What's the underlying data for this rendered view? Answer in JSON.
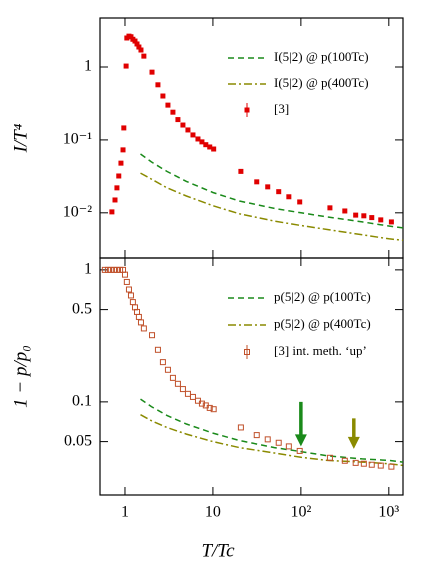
{
  "chart_data": [
    {
      "type": "line",
      "ylabel": "I/T⁴",
      "xscale": "log",
      "yscale": "log",
      "xlim": [
        0.52,
        1450
      ],
      "ylim": [
        0.0024,
        4.7
      ],
      "yticks": [
        {
          "value": 0.01,
          "label": "10⁻²"
        },
        {
          "value": 0.1,
          "label": "10⁻¹"
        },
        1
      ],
      "series": [
        {
          "name": "I(5|2) @ p(100Tc)",
          "color": "#1a8a1a",
          "style": "dashed",
          "x": [
            1.5,
            2,
            3,
            5,
            10,
            20,
            50,
            100,
            200,
            500,
            1000,
            1450
          ],
          "values": [
            0.064,
            0.05,
            0.037,
            0.027,
            0.019,
            0.0145,
            0.0115,
            0.01,
            0.0088,
            0.0075,
            0.0066,
            0.0062
          ]
        },
        {
          "name": "I(5|2) @ p(400Tc)",
          "color": "#8a8a00",
          "style": "dashdot",
          "x": [
            1.5,
            2,
            3,
            5,
            10,
            20,
            50,
            100,
            200,
            500,
            1000,
            1450
          ],
          "values": [
            0.035,
            0.029,
            0.022,
            0.017,
            0.0125,
            0.0097,
            0.0077,
            0.0067,
            0.0059,
            0.005,
            0.0044,
            0.0042
          ]
        },
        {
          "name": "[3]",
          "color": "#e00000",
          "style": "points",
          "x": [
            0.71,
            0.77,
            0.81,
            0.85,
            0.9,
            0.95,
            0.97,
            1.03,
            1.05,
            1.11,
            1.17,
            1.23,
            1.3,
            1.37,
            1.44,
            1.52,
            1.64,
            2.03,
            2.37,
            2.7,
            3.08,
            3.51,
            4.0,
            4.56,
            5.2,
            5.93,
            6.76,
            7.5,
            8.3,
            9.2,
            10.2,
            20.8,
            31.5,
            42,
            56,
            73,
            97,
            214,
            316,
            420,
            520,
            640,
            810,
            1070
          ],
          "values": [
            0.0103,
            0.015,
            0.022,
            0.032,
            0.048,
            0.073,
            0.146,
            1.03,
            2.5,
            2.65,
            2.6,
            2.4,
            2.27,
            2.07,
            1.88,
            1.71,
            1.41,
            0.85,
            0.57,
            0.4,
            0.3,
            0.24,
            0.19,
            0.16,
            0.137,
            0.117,
            0.103,
            0.094,
            0.086,
            0.08,
            0.075,
            0.037,
            0.0266,
            0.0227,
            0.0195,
            0.0166,
            0.0141,
            0.0117,
            0.0106,
            0.0093,
            0.0091,
            0.0086,
            0.008,
            0.0075
          ]
        }
      ]
    },
    {
      "type": "line",
      "ylabel": "1 − p/p₀",
      "xlabel": "T/Tc",
      "xscale": "log",
      "yscale": "log",
      "xlim": [
        0.52,
        1450
      ],
      "ylim": [
        0.0197,
        1.23
      ],
      "xticks": [
        1,
        10,
        {
          "value": 100,
          "label": "10²"
        },
        {
          "value": 1000,
          "label": "10³"
        }
      ],
      "yticks": [
        0.05,
        0.1,
        0.5,
        1
      ],
      "series": [
        {
          "name": "p(5|2) @  p(100Tc)",
          "color": "#1a8a1a",
          "style": "dashed",
          "x": [
            1.5,
            2,
            3,
            5,
            10,
            20,
            50,
            100,
            200,
            500,
            1000,
            1450
          ],
          "values": [
            0.105,
            0.092,
            0.079,
            0.068,
            0.058,
            0.051,
            0.045,
            0.042,
            0.039,
            0.037,
            0.036,
            0.035
          ]
        },
        {
          "name": "p(5|2) @  p(400Tc)",
          "color": "#8a8a00",
          "style": "dashdot",
          "x": [
            1.5,
            2,
            3,
            5,
            10,
            20,
            50,
            100,
            200,
            500,
            1000,
            1450
          ],
          "values": [
            0.08,
            0.072,
            0.064,
            0.057,
            0.05,
            0.045,
            0.041,
            0.038,
            0.036,
            0.035,
            0.034,
            0.033
          ]
        },
        {
          "name": "[3] int. meth. ‘up’",
          "color": "#c0502a",
          "style": "squares",
          "x": [
            0.59,
            0.64,
            0.69,
            0.75,
            0.81,
            0.88,
            0.95,
            1.0,
            1.05,
            1.11,
            1.17,
            1.23,
            1.3,
            1.37,
            1.44,
            1.52,
            1.64,
            2.03,
            2.37,
            2.7,
            3.08,
            3.51,
            4.0,
            4.56,
            5.2,
            5.93,
            6.76,
            7.5,
            8.3,
            9.2,
            10.2,
            20.8,
            31.5,
            42,
            56,
            73,
            97,
            214,
            316,
            420,
            520,
            640,
            810,
            1070
          ],
          "values": [
            1.0,
            1.0,
            1.0,
            1.0,
            1.0,
            1.0,
            1.0,
            0.92,
            0.81,
            0.71,
            0.64,
            0.57,
            0.52,
            0.48,
            0.44,
            0.4,
            0.36,
            0.32,
            0.248,
            0.2,
            0.175,
            0.152,
            0.137,
            0.125,
            0.115,
            0.109,
            0.102,
            0.097,
            0.094,
            0.09,
            0.088,
            0.064,
            0.056,
            0.052,
            0.049,
            0.046,
            0.0425,
            0.0377,
            0.0358,
            0.0345,
            0.034,
            0.0334,
            0.0329,
            0.0323
          ]
        }
      ],
      "arrows": [
        {
          "x": 100,
          "y_from": 0.1,
          "y_to": 0.046,
          "color": "#1a8a1a"
        },
        {
          "x": 400,
          "y_from": 0.075,
          "y_to": 0.044,
          "color": "#8a8a00"
        }
      ]
    }
  ]
}
